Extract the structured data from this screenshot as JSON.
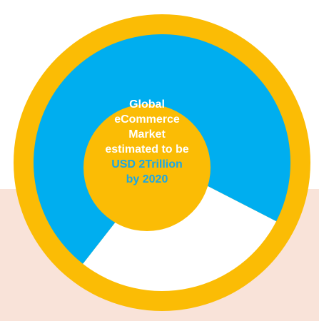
{
  "colors": {
    "background_band": "#f9e3d9",
    "ring": "#fbbc05",
    "hole": "#fbbc05",
    "segment_large": "#00aeef",
    "segment_small": "#ffffff",
    "highlight_text": "#1aa7e6",
    "center_text": "#ffffff"
  },
  "center_label": {
    "line1": "Global",
    "line2": "eCommerce",
    "line3": "Market",
    "line4": "estimated to be",
    "line5": "USD 2Trillion",
    "line6": "by 2020"
  },
  "chart_data": {
    "type": "pie",
    "donut": true,
    "slices": [
      {
        "value": 72,
        "color": "#00aeef"
      },
      {
        "value": 28,
        "color": "#ffffff"
      }
    ],
    "title": "",
    "legend": "none"
  }
}
